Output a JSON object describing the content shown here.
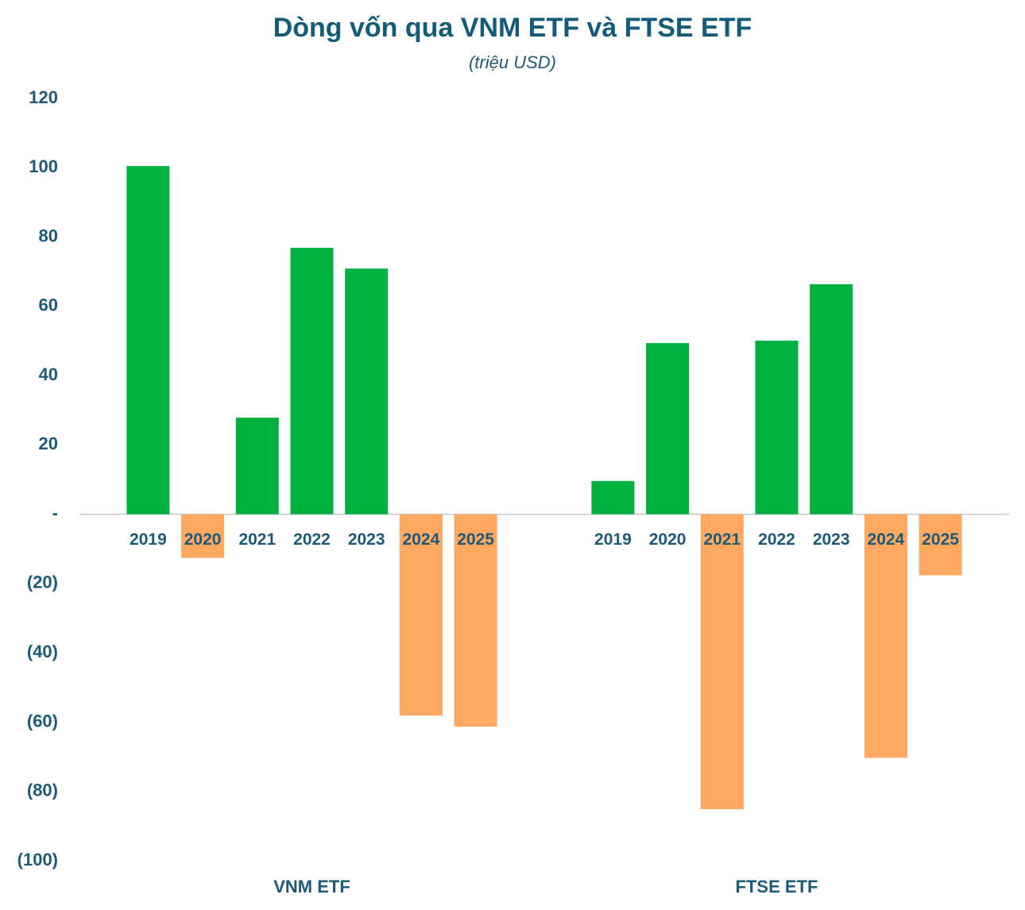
{
  "chart_data": {
    "type": "grouped-bar",
    "title": "Dòng vốn qua VNM ETF và FTSE ETF",
    "subtitle": "(triệu USD)",
    "positive_color": "#00b140",
    "negative_color": "#ffa860",
    "ylim": [
      -100,
      120
    ],
    "yticks": [
      {
        "value": -100,
        "label": "(100)"
      },
      {
        "value": -80,
        "label": "(80)"
      },
      {
        "value": -60,
        "label": "(60)"
      },
      {
        "value": -40,
        "label": "(40)"
      },
      {
        "value": -20,
        "label": "(20)"
      },
      {
        "value": 0,
        "label": "-"
      },
      20,
      40,
      60,
      80,
      100,
      120
    ],
    "grid": false,
    "groups": [
      {
        "name": "VNM ETF",
        "categories": [
          "2019",
          "2020",
          "2021",
          "2022",
          "2023",
          "2024",
          "2025"
        ],
        "values": [
          100.5,
          -12.6,
          27.9,
          76.9,
          70.9,
          -58.1,
          -61.3
        ]
      },
      {
        "name": "FTSE ETF",
        "categories": [
          "2019",
          "2020",
          "2021",
          "2022",
          "2023",
          "2024",
          "2025"
        ],
        "values": [
          9.6,
          49.4,
          -85.1,
          50.1,
          66.4,
          -70.3,
          -17.6
        ]
      }
    ]
  }
}
